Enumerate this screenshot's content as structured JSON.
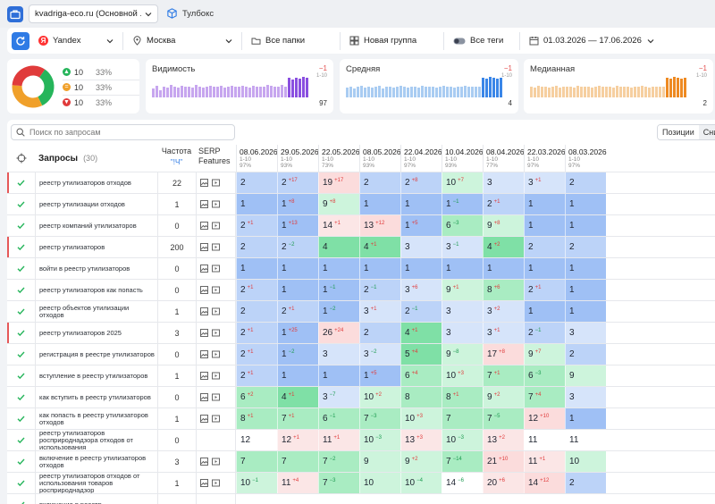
{
  "topbar": {
    "project": "kvadriga-eco.ru (Основной ...",
    "toolbox": "Тулбокс"
  },
  "filters": {
    "engine": "Yandex",
    "region": "Москва",
    "folders": "Все папки",
    "group": "Новая группа",
    "tags": "Все теги",
    "dates": "01.03.2026 — 17.06.2026"
  },
  "summary": {
    "legend": [
      {
        "count": "10",
        "pct": "33%",
        "color": "#26b55b",
        "icon": "arrow-up-icon"
      },
      {
        "count": "10",
        "pct": "33%",
        "color": "#f0a02a",
        "icon": "equal-icon"
      },
      {
        "count": "10",
        "pct": "33%",
        "color": "#e03b3b",
        "icon": "arrow-down-icon"
      }
    ],
    "donut": [
      {
        "value": 33.3,
        "color": "#26b55b"
      },
      {
        "value": 33.3,
        "color": "#f0a02a"
      },
      {
        "value": 33.4,
        "color": "#e03b3b"
      }
    ],
    "metrics": [
      {
        "title": "Видимость",
        "delta": "−1",
        "range": "1-10",
        "value": "97",
        "color": "#c7a6ef",
        "accent": "#8a4fe0",
        "bars": [
          40,
          55,
          35,
          50,
          45,
          60,
          50,
          45,
          55,
          48,
          52,
          46,
          58,
          50,
          44,
          52,
          56,
          48,
          50,
          54,
          46,
          52,
          55,
          50,
          48,
          53,
          50,
          47,
          55,
          52,
          50,
          48,
          60,
          55,
          50,
          52,
          58,
          50,
          90,
          85,
          92,
          88,
          95,
          90
        ]
      },
      {
        "title": "Средняя",
        "delta": "−1",
        "range": "1-10",
        "value": "4",
        "color": "#a9ccf2",
        "accent": "#3a86e8",
        "bars": [
          45,
          50,
          40,
          48,
          55,
          44,
          52,
          46,
          50,
          54,
          42,
          48,
          52,
          46,
          50,
          55,
          48,
          44,
          52,
          50,
          46,
          54,
          48,
          50,
          52,
          45,
          50,
          55,
          48,
          52,
          46,
          50,
          48,
          54,
          50,
          52,
          48,
          50,
          92,
          88,
          95,
          90,
          88,
          92
        ]
      },
      {
        "title": "Медианная",
        "delta": "−1",
        "range": "1-10",
        "value": "2",
        "color": "#f6cfa0",
        "accent": "#ee8a22",
        "bars": [
          50,
          45,
          55,
          48,
          52,
          46,
          50,
          54,
          44,
          52,
          48,
          50,
          46,
          54,
          50,
          48,
          52,
          45,
          50,
          55,
          48,
          52,
          50,
          46,
          54,
          48,
          50,
          52,
          46,
          50,
          48,
          54,
          50,
          46,
          52,
          48,
          50,
          52,
          90,
          86,
          94,
          90,
          88,
          92
        ]
      }
    ]
  },
  "table": {
    "search_placeholder": "Поиск по запросам",
    "modes": [
      "Позиции",
      "Сни"
    ],
    "header": {
      "queries": "Запросы",
      "count": "(30)",
      "freq": "Частота",
      "freq_sub": "\"!Ч\"",
      "serp": "SERP Features"
    },
    "dates": [
      {
        "date": "08.06.2026",
        "range": "1-10",
        "pct": "97%"
      },
      {
        "date": "29.05.2026",
        "range": "1-10",
        "pct": "93%"
      },
      {
        "date": "22.05.2026",
        "range": "1-10",
        "pct": "73%"
      },
      {
        "date": "08.05.2026",
        "range": "1-10",
        "pct": "93%"
      },
      {
        "date": "22.04.2026",
        "range": "1-10",
        "pct": "97%"
      },
      {
        "date": "10.04.2026",
        "range": "1-10",
        "pct": "93%"
      },
      {
        "date": "08.04.2026",
        "range": "1-10",
        "pct": "77%"
      },
      {
        "date": "22.03.2026",
        "range": "1-10",
        "pct": "97%"
      },
      {
        "date": "08.03.2026",
        "range": "1-10",
        "pct": "97%"
      }
    ],
    "rows": [
      {
        "q": "реестр утилизаторов отходов",
        "f": "22",
        "flag": true,
        "serp": true,
        "cells": [
          [
            "2",
            ""
          ],
          [
            "2",
            "+17"
          ],
          [
            "19",
            "+17"
          ],
          [
            "2",
            ""
          ],
          [
            "2",
            "+8"
          ],
          [
            "10",
            "+7"
          ],
          [
            "3",
            ""
          ],
          [
            "3",
            "+1"
          ],
          [
            "2",
            ""
          ]
        ]
      },
      {
        "q": "реестр утилизации отходов",
        "f": "1",
        "flag": false,
        "serp": true,
        "cells": [
          [
            "1",
            ""
          ],
          [
            "1",
            "+8"
          ],
          [
            "9",
            "+8"
          ],
          [
            "1",
            ""
          ],
          [
            "1",
            ""
          ],
          [
            "1",
            "−1"
          ],
          [
            "2",
            "+1"
          ],
          [
            "1",
            ""
          ],
          [
            "1",
            ""
          ]
        ]
      },
      {
        "q": "реестр компаний утилизаторов",
        "f": "0",
        "flag": false,
        "serp": true,
        "cells": [
          [
            "2",
            "+1"
          ],
          [
            "1",
            "+13"
          ],
          [
            "14",
            "+1"
          ],
          [
            "13",
            "+12"
          ],
          [
            "1",
            "+5"
          ],
          [
            "6",
            "−3"
          ],
          [
            "9",
            "+8"
          ],
          [
            "1",
            ""
          ],
          [
            "1",
            ""
          ]
        ]
      },
      {
        "q": "реестр утилизаторов",
        "f": "200",
        "flag": true,
        "serp": true,
        "cells": [
          [
            "2",
            ""
          ],
          [
            "2",
            "−2"
          ],
          [
            "4",
            ""
          ],
          [
            "4",
            "+1"
          ],
          [
            "3",
            ""
          ],
          [
            "3",
            "−1"
          ],
          [
            "4",
            "+2"
          ],
          [
            "2",
            ""
          ],
          [
            "2",
            ""
          ]
        ]
      },
      {
        "q": "войти в реестр утилизаторов",
        "f": "0",
        "flag": false,
        "serp": true,
        "cells": [
          [
            "1",
            ""
          ],
          [
            "1",
            ""
          ],
          [
            "1",
            ""
          ],
          [
            "1",
            ""
          ],
          [
            "1",
            ""
          ],
          [
            "1",
            ""
          ],
          [
            "1",
            ""
          ],
          [
            "1",
            ""
          ],
          [
            "1",
            ""
          ]
        ]
      },
      {
        "q": "реестр утилизаторов как попасть",
        "f": "0",
        "flag": false,
        "serp": true,
        "cells": [
          [
            "2",
            "+1"
          ],
          [
            "1",
            ""
          ],
          [
            "1",
            "−1"
          ],
          [
            "2",
            "−1"
          ],
          [
            "3",
            "+6"
          ],
          [
            "9",
            "+1"
          ],
          [
            "8",
            "+6"
          ],
          [
            "2",
            "+1"
          ],
          [
            "1",
            ""
          ]
        ]
      },
      {
        "q": "реестр объектов утилизации отходов",
        "f": "1",
        "flag": false,
        "serp": true,
        "cells": [
          [
            "2",
            ""
          ],
          [
            "2",
            "+1"
          ],
          [
            "1",
            "−2"
          ],
          [
            "3",
            "+1"
          ],
          [
            "2",
            "−1"
          ],
          [
            "3",
            ""
          ],
          [
            "3",
            "+2"
          ],
          [
            "1",
            ""
          ],
          [
            "1",
            ""
          ]
        ]
      },
      {
        "q": "реестр утилизаторов 2025",
        "f": "3",
        "flag": true,
        "serp": true,
        "cells": [
          [
            "2",
            "+1"
          ],
          [
            "1",
            "+25"
          ],
          [
            "26",
            "+24"
          ],
          [
            "2",
            ""
          ],
          [
            "4",
            "+1"
          ],
          [
            "3",
            ""
          ],
          [
            "3",
            "+1"
          ],
          [
            "2",
            "−1"
          ],
          [
            "3",
            ""
          ]
        ]
      },
      {
        "q": "регистрация в реестре утилизаторов",
        "f": "0",
        "flag": false,
        "serp": true,
        "cells": [
          [
            "2",
            "+1"
          ],
          [
            "1",
            "−2"
          ],
          [
            "3",
            ""
          ],
          [
            "3",
            "−2"
          ],
          [
            "5",
            "+4"
          ],
          [
            "9",
            "−8"
          ],
          [
            "17",
            "+8"
          ],
          [
            "9",
            "+7"
          ],
          [
            "2",
            ""
          ]
        ]
      },
      {
        "q": "вступление в реестр утилизаторов",
        "f": "1",
        "flag": false,
        "serp": true,
        "cells": [
          [
            "2",
            "+1"
          ],
          [
            "1",
            ""
          ],
          [
            "1",
            ""
          ],
          [
            "1",
            "+5"
          ],
          [
            "6",
            "+4"
          ],
          [
            "10",
            "+3"
          ],
          [
            "7",
            "+1"
          ],
          [
            "6",
            "−3"
          ],
          [
            "9",
            ""
          ]
        ]
      },
      {
        "q": "как вступить в реестр утилизаторов",
        "f": "0",
        "flag": false,
        "serp": true,
        "cells": [
          [
            "6",
            "+2"
          ],
          [
            "4",
            "+1"
          ],
          [
            "3",
            "−7"
          ],
          [
            "10",
            "+2"
          ],
          [
            "8",
            ""
          ],
          [
            "8",
            "+1"
          ],
          [
            "9",
            "+2"
          ],
          [
            "7",
            "+4"
          ],
          [
            "3",
            ""
          ]
        ]
      },
      {
        "q": "как попасть в реестр утилизаторов отходов",
        "f": "1",
        "flag": false,
        "serp": true,
        "cells": [
          [
            "8",
            "+1"
          ],
          [
            "7",
            "+1"
          ],
          [
            "6",
            "−1"
          ],
          [
            "7",
            "−3"
          ],
          [
            "10",
            "+3"
          ],
          [
            "7",
            ""
          ],
          [
            "7",
            "−5"
          ],
          [
            "12",
            "+10"
          ],
          [
            "1",
            ""
          ]
        ]
      },
      {
        "q": "реестр утилизаторов росприроднадзора отходов от использования",
        "f": "0",
        "flag": false,
        "serp": false,
        "cells": [
          [
            "12",
            ""
          ],
          [
            "12",
            "+1"
          ],
          [
            "11",
            "+1"
          ],
          [
            "10",
            "−3"
          ],
          [
            "13",
            "+3"
          ],
          [
            "10",
            "−3"
          ],
          [
            "13",
            "+2"
          ],
          [
            "11",
            ""
          ],
          [
            "11",
            ""
          ]
        ]
      },
      {
        "q": "включение в реестр утилизаторов отходов",
        "f": "3",
        "flag": false,
        "serp": true,
        "cells": [
          [
            "7",
            ""
          ],
          [
            "7",
            ""
          ],
          [
            "7",
            "−2"
          ],
          [
            "9",
            ""
          ],
          [
            "9",
            "+2"
          ],
          [
            "7",
            "−14"
          ],
          [
            "21",
            "+10"
          ],
          [
            "11",
            "+1"
          ],
          [
            "10",
            ""
          ]
        ]
      },
      {
        "q": "реестр утилизаторов отходов от использования товаров росприроднадзор",
        "f": "1",
        "flag": false,
        "serp": true,
        "cells": [
          [
            "10",
            "−1"
          ],
          [
            "11",
            "+4"
          ],
          [
            "7",
            "−3"
          ],
          [
            "10",
            ""
          ],
          [
            "10",
            "−4"
          ],
          [
            "14",
            "−6"
          ],
          [
            "20",
            "+6"
          ],
          [
            "14",
            "+12"
          ],
          [
            "2",
            ""
          ]
        ]
      },
      {
        "q": "включение в реестр",
        "f": "",
        "flag": false,
        "serp": false,
        "cells": [
          [
            "",
            ""
          ],
          [
            "",
            ""
          ],
          [
            "",
            ""
          ],
          [
            "",
            ""
          ],
          [
            "",
            ""
          ],
          [
            "",
            ""
          ],
          [
            "",
            ""
          ],
          [
            "",
            ""
          ],
          [
            "",
            ""
          ]
        ]
      }
    ]
  }
}
